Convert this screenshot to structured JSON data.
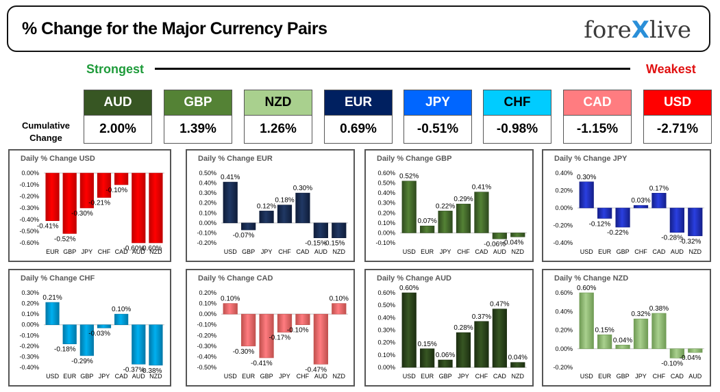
{
  "header": {
    "title": "% Change for the Major Currency Pairs",
    "logo_left": "fore",
    "logo_x": "X",
    "logo_right": "live"
  },
  "ranking": {
    "strongest_label": "Strongest",
    "weakest_label": "Weakest",
    "cumulative_label_line1": "Cumulative",
    "cumulative_label_line2": "Change",
    "currencies": [
      {
        "code": "AUD",
        "value": "2.00%",
        "color": "#375623",
        "text_color": "#ffffff"
      },
      {
        "code": "GBP",
        "value": "1.39%",
        "color": "#548235",
        "text_color": "#ffffff"
      },
      {
        "code": "NZD",
        "value": "1.26%",
        "color": "#a9d08e",
        "text_color": "#000000"
      },
      {
        "code": "EUR",
        "value": "0.69%",
        "color": "#002060",
        "text_color": "#ffffff"
      },
      {
        "code": "JPY",
        "value": "-0.51%",
        "color": "#0066ff",
        "text_color": "#ffffff"
      },
      {
        "code": "CHF",
        "value": "-0.98%",
        "color": "#00ccff",
        "text_color": "#000000"
      },
      {
        "code": "CAD",
        "value": "-1.15%",
        "color": "#ff7c80",
        "text_color": "#ffffff"
      },
      {
        "code": "USD",
        "value": "-2.71%",
        "color": "#ff0000",
        "text_color": "#ffffff"
      }
    ]
  },
  "chart_data": [
    {
      "type": "bar",
      "title": "Daily % Change USD",
      "categories": [
        "EUR",
        "GBP",
        "JPY",
        "CHF",
        "CAD",
        "AUD",
        "NZD"
      ],
      "values": [
        -0.41,
        -0.52,
        -0.3,
        -0.21,
        -0.1,
        -0.6,
        -0.6
      ],
      "labels": [
        "-0.41%",
        "-0.52%",
        "-0.30%",
        "-0.21%",
        "-0.10%",
        "-0.60%",
        "-0.60%"
      ],
      "ylim": [
        -0.6,
        0.0
      ],
      "yticks": [
        "0.00%",
        "-0.10%",
        "-0.20%",
        "-0.30%",
        "-0.40%",
        "-0.50%",
        "-0.60%"
      ],
      "ytick_values": [
        0,
        -0.1,
        -0.2,
        -0.3,
        -0.4,
        -0.5,
        -0.6
      ],
      "color": "#ff0000",
      "dark": "#c00000"
    },
    {
      "type": "bar",
      "title": "Daily % Change EUR",
      "categories": [
        "USD",
        "GBP",
        "JPY",
        "CHF",
        "CAD",
        "AUD",
        "NZD"
      ],
      "values": [
        0.41,
        -0.07,
        0.12,
        0.18,
        0.3,
        -0.15,
        -0.15
      ],
      "labels": [
        "0.41%",
        "-0.07%",
        "0.12%",
        "0.18%",
        "0.30%",
        "-0.15%",
        "-0.15%"
      ],
      "ylim": [
        -0.2,
        0.5
      ],
      "yticks": [
        "0.50%",
        "0.40%",
        "0.30%",
        "0.20%",
        "0.10%",
        "0.00%",
        "-0.10%",
        "-0.20%"
      ],
      "ytick_values": [
        0.5,
        0.4,
        0.3,
        0.2,
        0.1,
        0,
        -0.1,
        -0.2
      ],
      "color": "#203864",
      "dark": "#0f1d3a"
    },
    {
      "type": "bar",
      "title": "Daily % Change GBP",
      "categories": [
        "USD",
        "EUR",
        "JPY",
        "CHF",
        "CAD",
        "AUD",
        "NZD"
      ],
      "values": [
        0.52,
        0.07,
        0.22,
        0.29,
        0.41,
        -0.06,
        -0.04
      ],
      "labels": [
        "0.52%",
        "0.07%",
        "0.22%",
        "0.29%",
        "0.41%",
        "-0.06%",
        "-0.04%"
      ],
      "ylim": [
        -0.1,
        0.6
      ],
      "yticks": [
        "0.60%",
        "0.50%",
        "0.40%",
        "0.30%",
        "0.20%",
        "0.10%",
        "0.00%",
        "-0.10%"
      ],
      "ytick_values": [
        0.6,
        0.5,
        0.4,
        0.3,
        0.2,
        0.1,
        0,
        -0.1
      ],
      "color": "#548235",
      "dark": "#2f4a1e"
    },
    {
      "type": "bar",
      "title": "Daily % Change JPY",
      "categories": [
        "USD",
        "EUR",
        "GBP",
        "CHF",
        "CAD",
        "AUD",
        "NZD"
      ],
      "values": [
        0.3,
        -0.12,
        -0.22,
        0.03,
        0.17,
        -0.28,
        -0.32
      ],
      "labels": [
        "0.30%",
        "-0.12%",
        "-0.22%",
        "0.03%",
        "0.17%",
        "-0.28%",
        "-0.32%"
      ],
      "ylim": [
        -0.4,
        0.4
      ],
      "yticks": [
        "0.40%",
        "0.20%",
        "0.00%",
        "-0.20%",
        "-0.40%"
      ],
      "ytick_values": [
        0.4,
        0.2,
        0,
        -0.2,
        -0.4
      ],
      "color": "#2a3fe0",
      "dark": "#141f8a"
    },
    {
      "type": "bar",
      "title": "Daily % Change CHF",
      "categories": [
        "USD",
        "EUR",
        "GBP",
        "JPY",
        "CAD",
        "AUD",
        "NZD"
      ],
      "values": [
        0.21,
        -0.18,
        -0.29,
        -0.03,
        0.1,
        -0.37,
        -0.38
      ],
      "labels": [
        "0.21%",
        "-0.18%",
        "-0.29%",
        "-0.03%",
        "0.10%",
        "-0.37%",
        "-0.38%"
      ],
      "ylim": [
        -0.4,
        0.3
      ],
      "yticks": [
        "0.30%",
        "0.20%",
        "0.10%",
        "0.00%",
        "-0.10%",
        "-0.20%",
        "-0.30%",
        "-0.40%"
      ],
      "ytick_values": [
        0.3,
        0.2,
        0.1,
        0,
        -0.1,
        -0.2,
        -0.3,
        -0.4
      ],
      "color": "#00b0f0",
      "dark": "#0078a8"
    },
    {
      "type": "bar",
      "title": "Daily % Change CAD",
      "categories": [
        "USD",
        "EUR",
        "GBP",
        "JPY",
        "CHF",
        "AUD",
        "NZD"
      ],
      "values": [
        0.1,
        -0.3,
        -0.41,
        -0.17,
        -0.1,
        -0.47,
        0.1
      ],
      "labels": [
        "0.10%",
        "-0.30%",
        "-0.41%",
        "-0.17%",
        "-0.10%",
        "-0.47%",
        "0.10%"
      ],
      "ylim": [
        -0.5,
        0.2
      ],
      "yticks": [
        "0.20%",
        "0.10%",
        "0.00%",
        "-0.10%",
        "-0.20%",
        "-0.30%",
        "-0.40%",
        "-0.50%"
      ],
      "ytick_values": [
        0.2,
        0.1,
        0,
        -0.1,
        -0.2,
        -0.3,
        -0.4,
        -0.5
      ],
      "color": "#ff7c80",
      "dark": "#c0504d"
    },
    {
      "type": "bar",
      "title": "Daily % Change AUD",
      "categories": [
        "USD",
        "EUR",
        "GBP",
        "JPY",
        "CHF",
        "CAD",
        "NZD"
      ],
      "values": [
        0.6,
        0.15,
        0.06,
        0.28,
        0.37,
        0.47,
        0.04
      ],
      "labels": [
        "0.60%",
        "0.15%",
        "0.06%",
        "0.28%",
        "0.37%",
        "0.47%",
        "0.04%"
      ],
      "ylim": [
        0.0,
        0.6
      ],
      "yticks": [
        "0.60%",
        "0.50%",
        "0.40%",
        "0.30%",
        "0.20%",
        "0.10%",
        "0.00%"
      ],
      "ytick_values": [
        0.6,
        0.5,
        0.4,
        0.3,
        0.2,
        0.1,
        0
      ],
      "color": "#375623",
      "dark": "#1c2e11"
    },
    {
      "type": "bar",
      "title": "Daily % Change NZD",
      "categories": [
        "USD",
        "EUR",
        "GBP",
        "JPY",
        "CHF",
        "CAD",
        "AUD"
      ],
      "values": [
        0.6,
        0.15,
        0.04,
        0.32,
        0.38,
        -0.1,
        -0.04
      ],
      "labels": [
        "0.60%",
        "0.15%",
        "0.04%",
        "0.32%",
        "0.38%",
        "-0.10%",
        "-0.04%"
      ],
      "ylim": [
        -0.2,
        0.6
      ],
      "yticks": [
        "0.60%",
        "0.40%",
        "0.20%",
        "0.00%",
        "-0.20%"
      ],
      "ytick_values": [
        0.6,
        0.4,
        0.2,
        0,
        -0.2
      ],
      "color": "#a9d08e",
      "dark": "#6f9a54"
    }
  ]
}
